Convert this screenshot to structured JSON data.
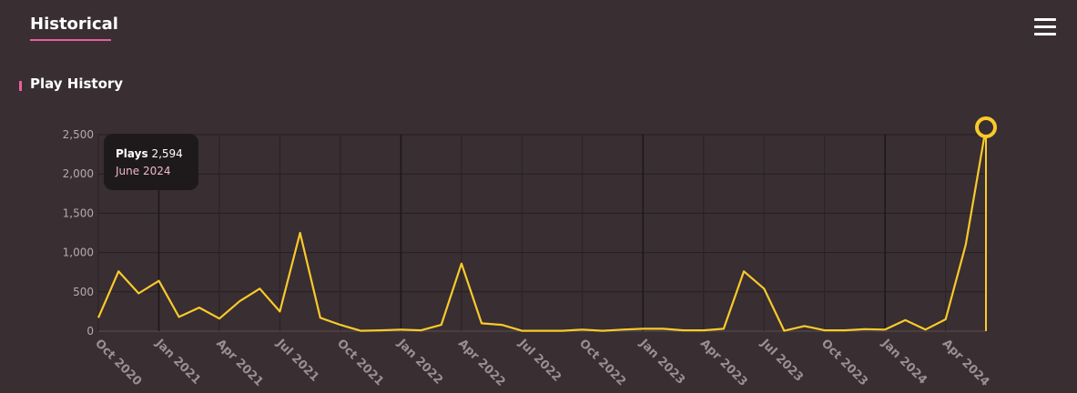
{
  "header": {
    "tab_label": "Historical"
  },
  "section": {
    "title": "Play History"
  },
  "tooltip": {
    "label": "Plays",
    "value": "2,594",
    "date": "June 2024"
  },
  "colors": {
    "line": "#f8ca2c",
    "accent": "#e8609c",
    "background": "#392e31"
  },
  "icons": {
    "menu": "hamburger-menu-icon"
  },
  "chart_data": {
    "type": "line",
    "title": "Play History",
    "xlabel": "",
    "ylabel": "",
    "ylim": [
      0,
      2500
    ],
    "yticks": [
      0,
      500,
      1000,
      1500,
      2000,
      2500
    ],
    "ytick_labels": [
      "0",
      "500",
      "1,000",
      "1,500",
      "2,000",
      "2,500"
    ],
    "xtick_labels": [
      "Oct 2020",
      "Jan 2021",
      "Apr 2021",
      "Jul 2021",
      "Oct 2021",
      "Jan 2022",
      "Apr 2022",
      "Jul 2022",
      "Oct 2022",
      "Jan 2023",
      "Apr 2023",
      "Jul 2023",
      "Oct 2023",
      "Jan 2024",
      "Apr 2024"
    ],
    "x": [
      "2020-10",
      "2020-11",
      "2020-12",
      "2021-01",
      "2021-02",
      "2021-03",
      "2021-04",
      "2021-05",
      "2021-06",
      "2021-07",
      "2021-08",
      "2021-09",
      "2021-10",
      "2021-11",
      "2021-12",
      "2022-01",
      "2022-02",
      "2022-03",
      "2022-04",
      "2022-05",
      "2022-06",
      "2022-07",
      "2022-08",
      "2022-09",
      "2022-10",
      "2022-11",
      "2022-12",
      "2023-01",
      "2023-02",
      "2023-03",
      "2023-04",
      "2023-05",
      "2023-06",
      "2023-07",
      "2023-08",
      "2023-09",
      "2023-10",
      "2023-11",
      "2023-12",
      "2024-01",
      "2024-02",
      "2024-03",
      "2024-04",
      "2024-05",
      "2024-06"
    ],
    "series": [
      {
        "values": [
          170,
          760,
          480,
          640,
          180,
          300,
          160,
          380,
          540,
          250,
          1250,
          170,
          80,
          5,
          10,
          20,
          10,
          80,
          860,
          100,
          80,
          5,
          5,
          5,
          20,
          5,
          20,
          30,
          30,
          10,
          10,
          30,
          760,
          540,
          5,
          65,
          10,
          10,
          25,
          20,
          140,
          20,
          150,
          1100,
          2594
        ]
      }
    ],
    "highlight_index": 44,
    "grid": true
  }
}
